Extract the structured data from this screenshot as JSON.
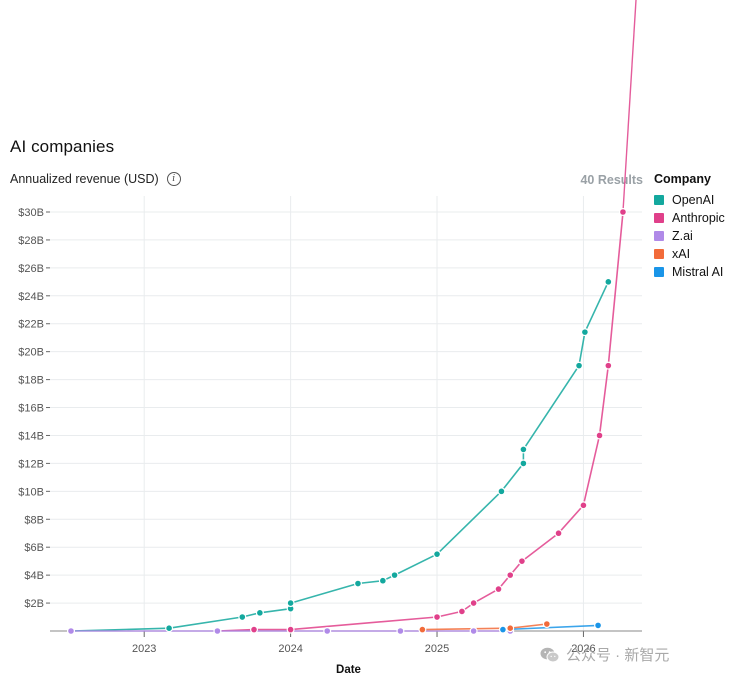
{
  "chart_data": {
    "type": "line",
    "title": "AI companies",
    "ylabel": "Annualized revenue (USD)",
    "xlabel": "Date",
    "results_text": "40 Results",
    "legend_title": "Company",
    "legend_position": "right",
    "grid": true,
    "xlim": [
      2022.5,
      2026.4
    ],
    "ylim": [
      0,
      30
    ],
    "y_unit": "billion USD",
    "x_ticks": [
      "2023",
      "2024",
      "2025",
      "2026"
    ],
    "x_tick_values": [
      2023,
      2024,
      2025,
      2026
    ],
    "y_ticks": [
      "$2B",
      "$4B",
      "$6B",
      "$8B",
      "$10B",
      "$12B",
      "$14B",
      "$16B",
      "$18B",
      "$20B",
      "$22B",
      "$24B",
      "$26B",
      "$28B",
      "$30B"
    ],
    "y_tick_values": [
      2,
      4,
      6,
      8,
      10,
      12,
      14,
      16,
      18,
      20,
      22,
      24,
      26,
      28,
      30
    ],
    "series": [
      {
        "name": "OpenAI",
        "color": "#13a89e",
        "x": [
          2022.5,
          2023.17,
          2023.67,
          2023.79,
          2024.0,
          2024.0,
          2024.46,
          2024.63,
          2024.71,
          2025.0,
          2025.44,
          2025.59,
          2025.59,
          2025.97,
          2026.01,
          2026.17
        ],
        "y": [
          0.0,
          0.2,
          1.0,
          1.3,
          1.6,
          2.0,
          3.4,
          3.6,
          4.0,
          5.5,
          10.0,
          12.0,
          13.0,
          19.0,
          21.4,
          25.0
        ]
      },
      {
        "name": "Anthropic",
        "color": "#e0408a",
        "x": [
          2023.5,
          2023.75,
          2024.0,
          2025.0,
          2025.17,
          2025.25,
          2025.42,
          2025.5,
          2025.58,
          2025.83,
          2026.0,
          2026.11,
          2026.17,
          2026.27
        ],
        "y": [
          0.0,
          0.1,
          0.1,
          1.0,
          1.4,
          2.0,
          3.0,
          4.0,
          5.0,
          7.0,
          9.0,
          14.0,
          19.0,
          30.0
        ]
      },
      {
        "name": "Z.ai",
        "color": "#b08ae8",
        "x": [
          2022.5,
          2023.5,
          2024.25,
          2024.75,
          2025.25,
          2025.5
        ],
        "y": [
          0.0,
          0.0,
          0.0,
          0.0,
          0.0,
          0.0
        ]
      },
      {
        "name": "xAI",
        "color": "#f26b3a",
        "x": [
          2024.9,
          2025.5,
          2025.75
        ],
        "y": [
          0.1,
          0.2,
          0.5
        ]
      },
      {
        "name": "Mistral AI",
        "color": "#1a95e8",
        "x": [
          2025.45,
          2026.1
        ],
        "y": [
          0.1,
          0.4
        ]
      }
    ]
  },
  "watermark": {
    "text": "公众号 · 新智元",
    "icon": "wechat-icon"
  }
}
